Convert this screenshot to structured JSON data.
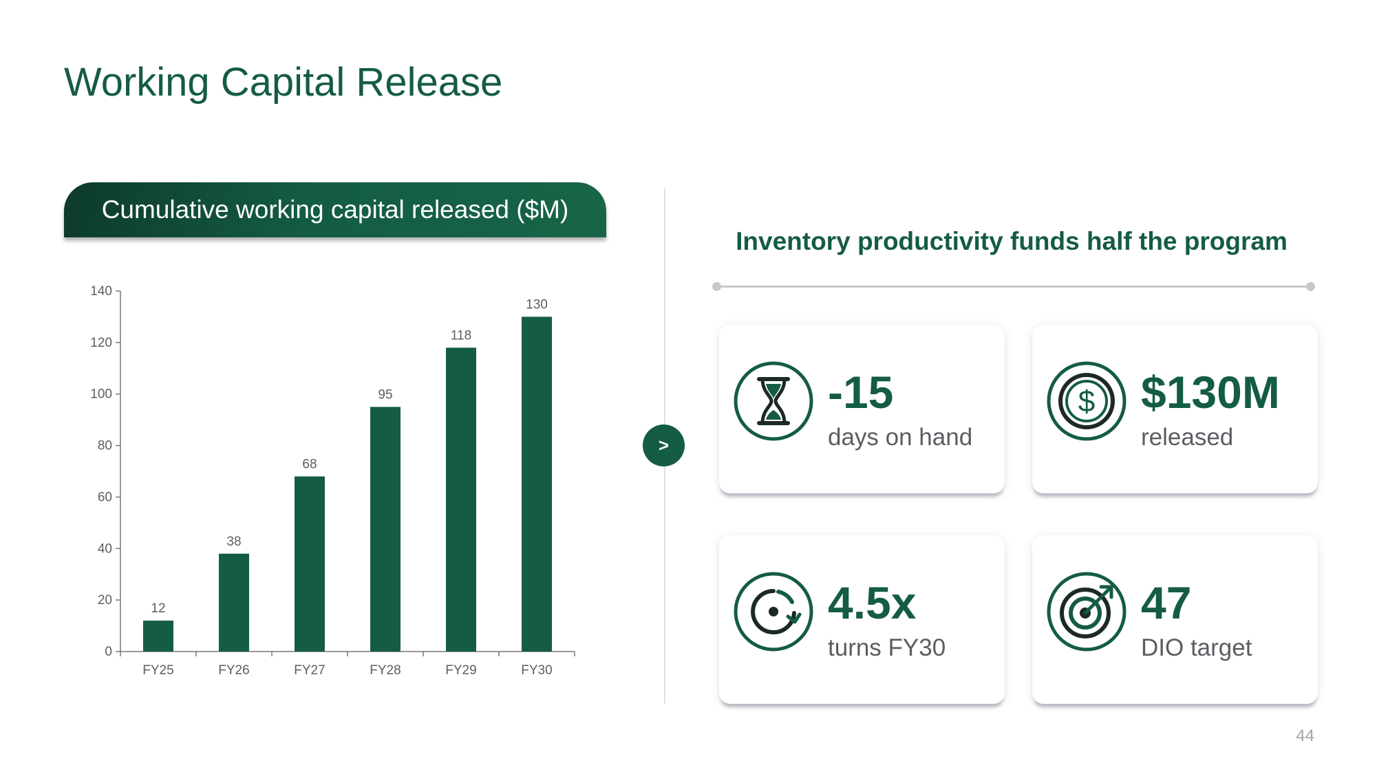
{
  "slide": {
    "title": "Working Capital Release",
    "page_number": "44"
  },
  "chart_panel": {
    "header": "Cumulative working capital released ($M)"
  },
  "chart_data": {
    "type": "bar",
    "categories": [
      "FY25",
      "FY26",
      "FY27",
      "FY28",
      "FY29",
      "FY30"
    ],
    "values": [
      12,
      38,
      68,
      95,
      118,
      130
    ],
    "data_labels": [
      "12",
      "38",
      "68",
      "95",
      "118",
      "130"
    ],
    "title": "Cumulative working capital released ($M)",
    "xlabel": "",
    "ylabel": "",
    "ylim": [
      0,
      140
    ],
    "yticks": [
      0,
      20,
      40,
      60,
      80,
      100,
      120,
      140
    ],
    "grid": false,
    "legend": "none",
    "bar_color": "#145c43"
  },
  "nav": {
    "arrow_label": ">"
  },
  "summary": {
    "heading": "Inventory productivity funds half the program",
    "cards": [
      {
        "icon": "hourglass-icon",
        "value": "-15",
        "label": "days on hand"
      },
      {
        "icon": "dollar-coin-icon",
        "value": "$130M",
        "label": "released"
      },
      {
        "icon": "cycle-arrow-icon",
        "value": "4.5x",
        "label": "turns FY30"
      },
      {
        "icon": "target-icon",
        "value": "47",
        "label": "DIO target"
      }
    ]
  },
  "colors": {
    "accent": "#145c43",
    "muted_text": "#5f5b62",
    "rule": "#c9c6cc"
  }
}
